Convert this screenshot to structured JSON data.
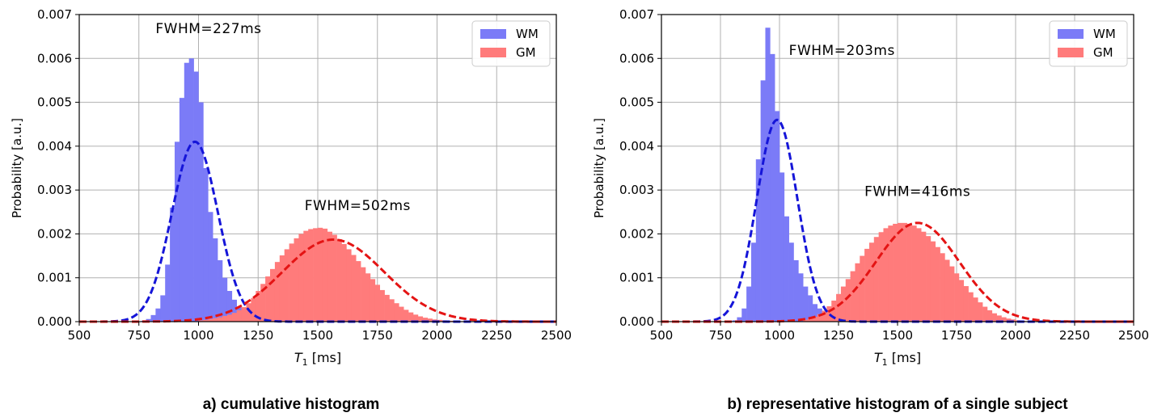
{
  "chart_data": [
    {
      "type": "histogram",
      "caption": "a) cumulative histogram",
      "xlabel_prefix": "T",
      "xlabel_sub": "1",
      "xlabel_suffix": " [ms]",
      "ylabel": "Probability [a.u.]",
      "xlim": [
        500,
        2500
      ],
      "ylim": [
        0,
        0.007
      ],
      "xticks": [
        500,
        750,
        1000,
        1250,
        1500,
        1750,
        2000,
        2250,
        2500
      ],
      "xtick_labels": [
        "500",
        "750",
        "1000",
        "1250",
        "1500",
        "1750",
        "2000",
        "2250",
        "2500"
      ],
      "yticks": [
        0,
        0.001,
        0.002,
        0.003,
        0.004,
        0.005,
        0.006,
        0.007
      ],
      "ytick_labels": [
        "0.000",
        "0.001",
        "0.002",
        "0.003",
        "0.004",
        "0.005",
        "0.006",
        "0.007"
      ],
      "grid": true,
      "legend_position": "top-right",
      "series": [
        {
          "name": "WM",
          "color": "#7b7bf7",
          "bin_width": 20,
          "x": [
            760,
            780,
            800,
            820,
            840,
            860,
            880,
            900,
            920,
            940,
            960,
            980,
            1000,
            1020,
            1040,
            1060,
            1080,
            1100,
            1120,
            1140,
            1160,
            1180,
            1200,
            1220,
            1240
          ],
          "values": [
            2e-05,
            6e-05,
            0.00015,
            0.0003,
            0.0006,
            0.0013,
            0.0026,
            0.0041,
            0.0051,
            0.0059,
            0.006,
            0.0057,
            0.005,
            0.0035,
            0.0025,
            0.0019,
            0.0014,
            0.001,
            0.0007,
            0.0005,
            0.00035,
            0.00022,
            0.00012,
            6e-05,
            3e-05
          ],
          "fit": {
            "mean": 985,
            "sd": 96.4,
            "peak": 0.0041,
            "color": "#1515d8"
          }
        },
        {
          "name": "GM",
          "color": "#ff7b7b",
          "bin_width": 20,
          "x": [
            1000,
            1020,
            1040,
            1060,
            1080,
            1100,
            1120,
            1140,
            1160,
            1180,
            1200,
            1220,
            1240,
            1260,
            1280,
            1300,
            1320,
            1340,
            1360,
            1380,
            1400,
            1420,
            1440,
            1460,
            1480,
            1500,
            1520,
            1540,
            1560,
            1580,
            1600,
            1620,
            1640,
            1660,
            1680,
            1700,
            1720,
            1740,
            1760,
            1780,
            1800,
            1820,
            1840,
            1860,
            1880,
            1900,
            1920,
            1940,
            1960,
            1980,
            2000,
            2020,
            2040,
            2060,
            2080,
            2100,
            2120,
            2140,
            2160,
            2180,
            2200,
            2220
          ],
          "values": [
            3e-05,
            4e-05,
            6e-05,
            8e-05,
            0.0001,
            0.00013,
            0.00016,
            0.0002,
            0.00026,
            0.00033,
            0.00042,
            0.00054,
            0.0007,
            0.00086,
            0.00103,
            0.0012,
            0.00136,
            0.00151,
            0.00165,
            0.00178,
            0.0019,
            0.002,
            0.00207,
            0.00211,
            0.00213,
            0.00214,
            0.00212,
            0.00205,
            0.00198,
            0.00188,
            0.00177,
            0.00165,
            0.00152,
            0.00138,
            0.00124,
            0.0011,
            0.00097,
            0.00084,
            0.00072,
            0.00061,
            0.00051,
            0.00042,
            0.00034,
            0.00027,
            0.00021,
            0.00016,
            0.00012,
            9e-05,
            7e-05,
            5e-05,
            4e-05,
            3e-05,
            2e-05,
            2e-05,
            1e-05,
            1e-05,
            1e-05,
            1e-05,
            1e-05,
            0,
            0,
            0
          ],
          "fit": {
            "mean": 1565,
            "sd": 213.2,
            "peak": 0.00187,
            "color": "#e41414"
          }
        }
      ],
      "annotations": [
        {
          "text": "FWHM=227ms",
          "x": 820,
          "y": 0.00658
        },
        {
          "text": "FWHM=502ms",
          "x": 1445,
          "y": 0.00254
        }
      ]
    },
    {
      "type": "histogram",
      "caption": "b) representative histogram of a single subject",
      "xlabel_prefix": "T",
      "xlabel_sub": "1",
      "xlabel_suffix": " [ms]",
      "ylabel": "Probability [a.u.]",
      "xlim": [
        500,
        2500
      ],
      "ylim": [
        0,
        0.007
      ],
      "xticks": [
        500,
        750,
        1000,
        1250,
        1500,
        1750,
        2000,
        2250,
        2500
      ],
      "xtick_labels": [
        "500",
        "750",
        "1000",
        "1250",
        "1500",
        "1750",
        "2000",
        "2250",
        "2500"
      ],
      "yticks": [
        0,
        0.001,
        0.002,
        0.003,
        0.004,
        0.005,
        0.006,
        0.007
      ],
      "ytick_labels": [
        "0.000",
        "0.001",
        "0.002",
        "0.003",
        "0.004",
        "0.005",
        "0.006",
        "0.007"
      ],
      "grid": true,
      "legend_position": "top-right",
      "series": [
        {
          "name": "WM",
          "color": "#7b7bf7",
          "bin_width": 20,
          "x": [
            800,
            820,
            840,
            860,
            880,
            900,
            920,
            940,
            960,
            980,
            1000,
            1020,
            1040,
            1060,
            1080,
            1100,
            1120,
            1140,
            1160,
            1180,
            1200,
            1220,
            1240
          ],
          "values": [
            3e-05,
            0.0001,
            0.0003,
            0.0008,
            0.0018,
            0.0037,
            0.0055,
            0.0067,
            0.0061,
            0.0048,
            0.0034,
            0.0024,
            0.0018,
            0.0014,
            0.0011,
            0.0008,
            0.0006,
            0.0004,
            0.0003,
            0.0002,
            0.0001,
            5e-05,
            2e-05
          ],
          "fit": {
            "mean": 990,
            "sd": 86.2,
            "peak": 0.0046,
            "color": "#1515d8"
          }
        },
        {
          "name": "GM",
          "color": "#ff7b7b",
          "bin_width": 20,
          "x": [
            1100,
            1120,
            1140,
            1160,
            1180,
            1200,
            1220,
            1240,
            1260,
            1280,
            1300,
            1320,
            1340,
            1360,
            1380,
            1400,
            1420,
            1440,
            1460,
            1480,
            1500,
            1520,
            1540,
            1560,
            1580,
            1600,
            1620,
            1640,
            1660,
            1680,
            1700,
            1720,
            1740,
            1760,
            1780,
            1800,
            1820,
            1840,
            1860,
            1880,
            1900,
            1920,
            1940,
            1960,
            1980,
            2000,
            2020,
            2040,
            2060,
            2080,
            2100
          ],
          "values": [
            4e-05,
            7e-05,
            0.00011,
            0.00017,
            0.00025,
            0.00035,
            0.00048,
            0.00063,
            0.0008,
            0.00097,
            0.00115,
            0.00133,
            0.0015,
            0.00166,
            0.0018,
            0.00193,
            0.00204,
            0.00213,
            0.00219,
            0.00223,
            0.00225,
            0.00225,
            0.00223,
            0.00219,
            0.00213,
            0.00205,
            0.00195,
            0.00183,
            0.0017,
            0.00156,
            0.00141,
            0.00126,
            0.0011,
            0.00095,
            0.00081,
            0.00067,
            0.00055,
            0.00044,
            0.00034,
            0.00026,
            0.00019,
            0.00014,
            0.0001,
            7e-05,
            5e-05,
            3e-05,
            2e-05,
            1e-05,
            1e-05,
            1e-05,
            0
          ],
          "fit": {
            "mean": 1585,
            "sd": 176.7,
            "peak": 0.00225,
            "color": "#e41414"
          }
        }
      ],
      "annotations": [
        {
          "text": "FWHM=203ms",
          "x": 1040,
          "y": 0.00608
        },
        {
          "text": "FWHM=416ms",
          "x": 1360,
          "y": 0.00286
        }
      ]
    }
  ]
}
